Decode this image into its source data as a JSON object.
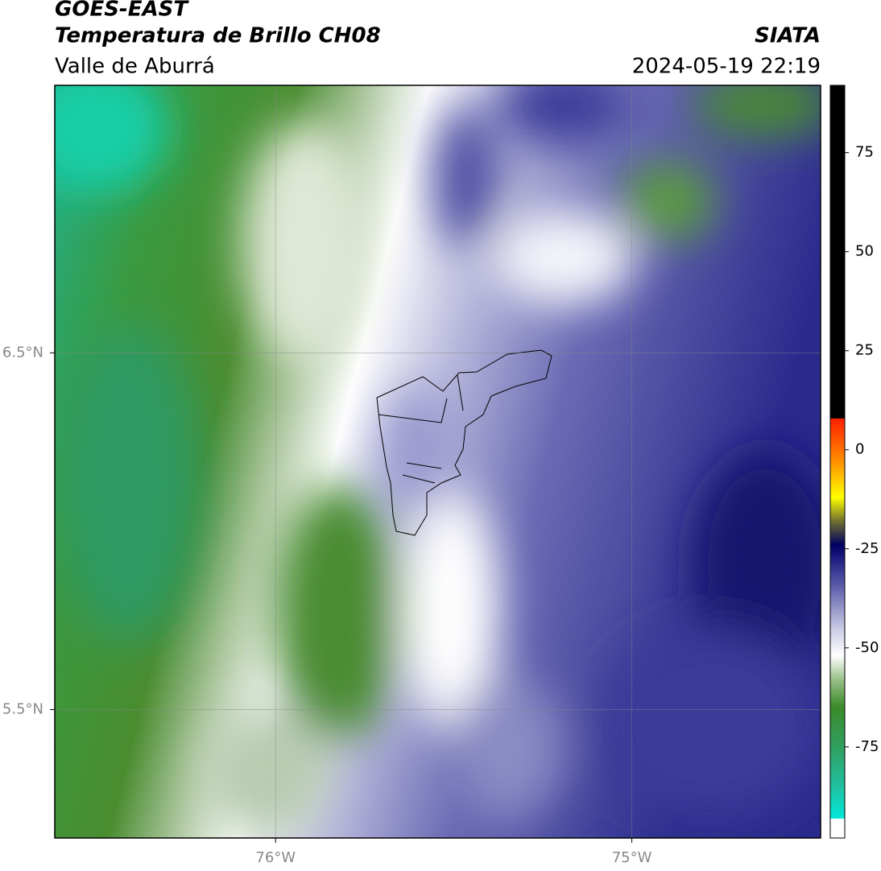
{
  "header": {
    "title": "GOES-EAST",
    "subtitle": "Temperatura de Brillo CH08",
    "region": "Valle de Aburrá",
    "source": "SIATA",
    "datetime": "2024-05-19 22:19"
  },
  "map": {
    "xlim": [
      -76.62,
      -74.47
    ],
    "ylim": [
      5.14,
      7.25
    ],
    "xticks": [
      {
        "value": -76,
        "label": "76°W"
      },
      {
        "value": -75,
        "label": "75°W"
      }
    ],
    "yticks": [
      {
        "value": 6.5,
        "label": "6.5°N"
      },
      {
        "value": 5.5,
        "label": "5.5°N"
      }
    ],
    "grid": true
  },
  "colorbar": {
    "lim": [
      -98,
      92
    ],
    "ticks": [
      75,
      50,
      25,
      0,
      -25,
      -50,
      -75
    ],
    "stops": [
      {
        "value": -98,
        "color": "#ffffff"
      },
      {
        "value": -93.2,
        "color": "#ffffff"
      },
      {
        "value": -93,
        "color": "#00e8d8"
      },
      {
        "value": -85,
        "color": "#20c0a0"
      },
      {
        "value": -75,
        "color": "#30a060"
      },
      {
        "value": -65,
        "color": "#3a8a2a"
      },
      {
        "value": -58,
        "color": "#9ac088"
      },
      {
        "value": -52,
        "color": "#ffffff"
      },
      {
        "value": -45,
        "color": "#c8c8e4"
      },
      {
        "value": -35,
        "color": "#6262ae"
      },
      {
        "value": -27,
        "color": "#1a1a80"
      },
      {
        "value": -24,
        "color": "#000060"
      },
      {
        "value": -18,
        "color": "#707030"
      },
      {
        "value": -12,
        "color": "#ffff00"
      },
      {
        "value": -3,
        "color": "#ff9000"
      },
      {
        "value": 7.8,
        "color": "#ff2000"
      },
      {
        "value": 8,
        "color": "#000000"
      },
      {
        "value": 92,
        "color": "#000000"
      }
    ]
  }
}
